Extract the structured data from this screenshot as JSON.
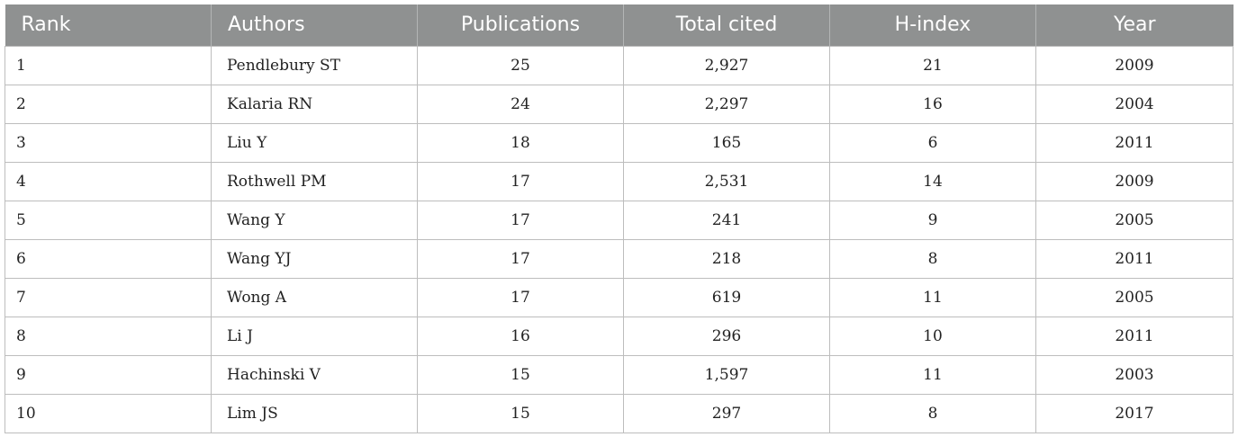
{
  "table": {
    "headers": [
      "Rank",
      "Authors",
      "Publications",
      "Total cited",
      "H-index",
      "Year"
    ],
    "rows": [
      [
        "1",
        "Pendlebury ST",
        "25",
        "2,927",
        "21",
        "2009"
      ],
      [
        "2",
        "Kalaria RN",
        "24",
        "2,297",
        "16",
        "2004"
      ],
      [
        "3",
        "Liu Y",
        "18",
        "165",
        "6",
        "2011"
      ],
      [
        "4",
        "Rothwell PM",
        "17",
        "2,531",
        "14",
        "2009"
      ],
      [
        "5",
        "Wang Y",
        "17",
        "241",
        "9",
        "2005"
      ],
      [
        "6",
        "Wang YJ",
        "17",
        "218",
        "8",
        "2011"
      ],
      [
        "7",
        "Wong A",
        "17",
        "619",
        "11",
        "2005"
      ],
      [
        "8",
        "Li J",
        "16",
        "296",
        "10",
        "2011"
      ],
      [
        "9",
        "Hachinski V",
        "15",
        "1,597",
        "11",
        "2003"
      ],
      [
        "10",
        "Lim JS",
        "15",
        "297",
        "8",
        "2017"
      ]
    ]
  },
  "colors": {
    "header_background": "#8f9191",
    "header_text": "#ffffff",
    "grid_line": "#bdbdbd",
    "body_text": "#222222"
  }
}
